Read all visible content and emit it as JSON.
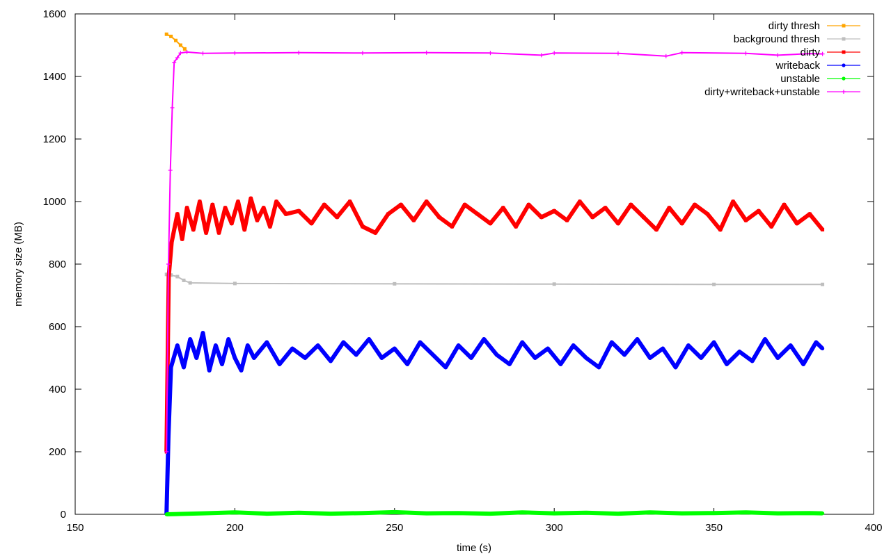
{
  "chart_data": {
    "type": "line",
    "title": "",
    "xlabel": "time (s)",
    "ylabel": "memory size (MB)",
    "xlim": [
      150,
      400
    ],
    "ylim": [
      0,
      1600
    ],
    "x_ticks": [
      150,
      200,
      250,
      300,
      350,
      400
    ],
    "y_ticks": [
      0,
      200,
      400,
      600,
      800,
      1000,
      1200,
      1400,
      1600
    ],
    "grid": false,
    "legend_position": "top-right",
    "series": [
      {
        "name": "dirty thresh",
        "color": "#ffa500",
        "marker": "square",
        "points": [
          [
            178.6,
            1535
          ],
          [
            180,
            1528
          ],
          [
            181.5,
            1515
          ],
          [
            183,
            1500
          ],
          [
            184.3,
            1488
          ]
        ]
      },
      {
        "name": "background thresh",
        "color": "#bebebe",
        "marker": "square",
        "points": [
          [
            178.6,
            767
          ],
          [
            180,
            765
          ],
          [
            182,
            760
          ],
          [
            184,
            748
          ],
          [
            186,
            740
          ],
          [
            200,
            738
          ],
          [
            250,
            737
          ],
          [
            300,
            736
          ],
          [
            350,
            735
          ],
          [
            384,
            735
          ]
        ]
      },
      {
        "name": "dirty",
        "color": "#ff0000",
        "marker": "square",
        "points": [
          [
            178.6,
            200
          ],
          [
            179.3,
            760
          ],
          [
            180.2,
            870
          ],
          [
            182,
            960
          ],
          [
            183.5,
            880
          ],
          [
            185,
            980
          ],
          [
            187,
            910
          ],
          [
            189,
            1000
          ],
          [
            191,
            900
          ],
          [
            193,
            990
          ],
          [
            195,
            900
          ],
          [
            197,
            980
          ],
          [
            199,
            930
          ],
          [
            201,
            1000
          ],
          [
            203,
            910
          ],
          [
            205,
            1010
          ],
          [
            207,
            940
          ],
          [
            209,
            980
          ],
          [
            211,
            920
          ],
          [
            213,
            1000
          ],
          [
            216,
            960
          ],
          [
            220,
            970
          ],
          [
            224,
            930
          ],
          [
            228,
            990
          ],
          [
            232,
            950
          ],
          [
            236,
            1000
          ],
          [
            240,
            920
          ],
          [
            244,
            900
          ],
          [
            248,
            960
          ],
          [
            252,
            990
          ],
          [
            256,
            940
          ],
          [
            260,
            1000
          ],
          [
            264,
            950
          ],
          [
            268,
            920
          ],
          [
            272,
            990
          ],
          [
            276,
            960
          ],
          [
            280,
            930
          ],
          [
            284,
            980
          ],
          [
            288,
            920
          ],
          [
            292,
            990
          ],
          [
            296,
            950
          ],
          [
            300,
            970
          ],
          [
            304,
            940
          ],
          [
            308,
            1000
          ],
          [
            312,
            950
          ],
          [
            316,
            980
          ],
          [
            320,
            930
          ],
          [
            324,
            990
          ],
          [
            328,
            950
          ],
          [
            332,
            910
          ],
          [
            336,
            980
          ],
          [
            340,
            930
          ],
          [
            344,
            990
          ],
          [
            348,
            960
          ],
          [
            352,
            910
          ],
          [
            356,
            1000
          ],
          [
            360,
            940
          ],
          [
            364,
            970
          ],
          [
            368,
            920
          ],
          [
            372,
            990
          ],
          [
            376,
            930
          ],
          [
            380,
            960
          ],
          [
            384,
            910
          ]
        ]
      },
      {
        "name": "writeback",
        "color": "#0000ff",
        "marker": "circle",
        "points": [
          [
            178.6,
            0
          ],
          [
            179.2,
            250
          ],
          [
            180,
            470
          ],
          [
            182,
            540
          ],
          [
            184,
            470
          ],
          [
            186,
            560
          ],
          [
            188,
            500
          ],
          [
            190,
            580
          ],
          [
            192,
            460
          ],
          [
            194,
            540
          ],
          [
            196,
            480
          ],
          [
            198,
            560
          ],
          [
            200,
            500
          ],
          [
            202,
            460
          ],
          [
            204,
            540
          ],
          [
            206,
            500
          ],
          [
            210,
            550
          ],
          [
            214,
            480
          ],
          [
            218,
            530
          ],
          [
            222,
            500
          ],
          [
            226,
            540
          ],
          [
            230,
            490
          ],
          [
            234,
            550
          ],
          [
            238,
            510
          ],
          [
            242,
            560
          ],
          [
            246,
            500
          ],
          [
            250,
            530
          ],
          [
            254,
            480
          ],
          [
            258,
            550
          ],
          [
            262,
            510
          ],
          [
            266,
            470
          ],
          [
            270,
            540
          ],
          [
            274,
            500
          ],
          [
            278,
            560
          ],
          [
            282,
            510
          ],
          [
            286,
            480
          ],
          [
            290,
            550
          ],
          [
            294,
            500
          ],
          [
            298,
            530
          ],
          [
            302,
            480
          ],
          [
            306,
            540
          ],
          [
            310,
            500
          ],
          [
            314,
            470
          ],
          [
            318,
            550
          ],
          [
            322,
            510
          ],
          [
            326,
            560
          ],
          [
            330,
            500
          ],
          [
            334,
            530
          ],
          [
            338,
            470
          ],
          [
            342,
            540
          ],
          [
            346,
            500
          ],
          [
            350,
            550
          ],
          [
            354,
            480
          ],
          [
            358,
            520
          ],
          [
            362,
            490
          ],
          [
            366,
            560
          ],
          [
            370,
            500
          ],
          [
            374,
            540
          ],
          [
            378,
            480
          ],
          [
            382,
            550
          ],
          [
            384,
            530
          ]
        ]
      },
      {
        "name": "unstable",
        "color": "#00ff00",
        "marker": "circle",
        "points": [
          [
            178.6,
            0
          ],
          [
            190,
            3
          ],
          [
            200,
            6
          ],
          [
            210,
            2
          ],
          [
            220,
            5
          ],
          [
            230,
            2
          ],
          [
            240,
            4
          ],
          [
            250,
            7
          ],
          [
            260,
            3
          ],
          [
            270,
            4
          ],
          [
            280,
            2
          ],
          [
            290,
            6
          ],
          [
            300,
            3
          ],
          [
            310,
            5
          ],
          [
            320,
            2
          ],
          [
            330,
            6
          ],
          [
            340,
            3
          ],
          [
            350,
            4
          ],
          [
            360,
            6
          ],
          [
            370,
            3
          ],
          [
            380,
            4
          ],
          [
            384,
            3
          ]
        ]
      },
      {
        "name": "dirty+writeback+unstable",
        "color": "#ff00ff",
        "marker": "plus",
        "points": [
          [
            178.6,
            200
          ],
          [
            179.2,
            800
          ],
          [
            179.8,
            1100
          ],
          [
            180.4,
            1300
          ],
          [
            181,
            1445
          ],
          [
            182,
            1460
          ],
          [
            183,
            1475
          ],
          [
            185,
            1478
          ],
          [
            190,
            1474
          ],
          [
            200,
            1475
          ],
          [
            220,
            1476
          ],
          [
            240,
            1475
          ],
          [
            260,
            1476
          ],
          [
            280,
            1475
          ],
          [
            296,
            1468
          ],
          [
            300,
            1475
          ],
          [
            320,
            1474
          ],
          [
            335,
            1465
          ],
          [
            340,
            1476
          ],
          [
            360,
            1474
          ],
          [
            370,
            1468
          ],
          [
            380,
            1473
          ],
          [
            384,
            1472
          ]
        ]
      }
    ]
  }
}
